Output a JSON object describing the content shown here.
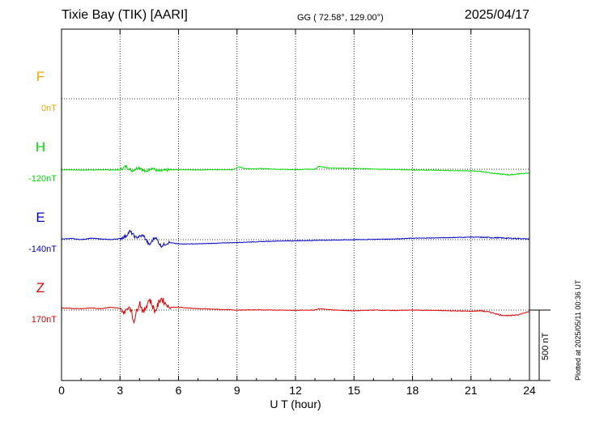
{
  "header": {
    "title": "Tixie Bay (TIK)  [AARI]",
    "coords": "GG ( 72.58°, 129.00°)",
    "date": "2025/04/17"
  },
  "footer": {
    "xlabel": "U T (hour)",
    "plotted": "Plotted at 2025/05/11 00:36 UT",
    "scale_label": "500 nT"
  },
  "colors": {
    "F": "#f0a800",
    "H": "#00dd00",
    "E": "#0000cc",
    "Z": "#e00000",
    "axis": "#000000",
    "grid": "#000000"
  },
  "chart_data": {
    "type": "line",
    "title": "Tixie Bay (TIK)  [AARI]",
    "xlabel": "U T (hour)",
    "ylabel": "",
    "x_ticks": [
      0,
      3,
      6,
      9,
      12,
      15,
      18,
      21,
      24
    ],
    "xlim": [
      0,
      24
    ],
    "grid": true,
    "scale_bar_nT": 500,
    "series": [
      {
        "name": "F",
        "baseline_label": "0nT",
        "values": []
      },
      {
        "name": "H",
        "baseline_label": "-120nT",
        "x": [
          0,
          0.5,
          1,
          1.5,
          2,
          2.5,
          3,
          3.3,
          3.6,
          4.0,
          4.3,
          4.6,
          5.0,
          5.5,
          6,
          7,
          8,
          8.8,
          9.1,
          9.4,
          9.8,
          10.5,
          11,
          12,
          12.5,
          13,
          13.2,
          13.6,
          14,
          15,
          16,
          17,
          18,
          19,
          20,
          21,
          21.5,
          22,
          22.5,
          23,
          23.5,
          24
        ],
        "values": [
          -5,
          -4,
          -6,
          -5,
          -4,
          -5,
          -5,
          20,
          -10,
          15,
          -20,
          10,
          -15,
          -5,
          -3,
          -5,
          -3,
          -4,
          18,
          5,
          3,
          4,
          0,
          -3,
          0,
          -2,
          22,
          10,
          8,
          5,
          2,
          -2,
          -5,
          -6,
          -10,
          -12,
          -15,
          -25,
          -35,
          -40,
          -32,
          -28
        ]
      },
      {
        "name": "E",
        "baseline_label": "-140nT",
        "x": [
          0,
          0.5,
          1,
          1.5,
          2,
          2.5,
          3,
          3.3,
          3.5,
          3.8,
          4.2,
          4.5,
          4.8,
          5.1,
          5.5,
          6,
          7,
          8,
          9,
          10,
          11,
          12,
          13,
          14,
          15,
          16,
          17,
          18,
          19,
          20,
          21,
          22,
          23,
          24
        ],
        "values": [
          5,
          8,
          0,
          10,
          5,
          0,
          8,
          25,
          60,
          15,
          30,
          -40,
          20,
          -45,
          -20,
          -30,
          -30,
          -25,
          -20,
          -15,
          -10,
          -8,
          -5,
          -3,
          0,
          2,
          5,
          10,
          12,
          15,
          18,
          15,
          10,
          5
        ]
      },
      {
        "name": "Z",
        "baseline_label": "170nT",
        "x": [
          0,
          0.5,
          1,
          1.5,
          2,
          2.5,
          3,
          3.2,
          3.5,
          3.7,
          4.0,
          4.2,
          4.5,
          4.8,
          5.1,
          5.5,
          6,
          7,
          8,
          9,
          10,
          11,
          12,
          13,
          13.2,
          14,
          15,
          16,
          17,
          18,
          19,
          20,
          21,
          21.5,
          22,
          22.5,
          23,
          23.5,
          24
        ],
        "values": [
          15,
          12,
          10,
          15,
          10,
          20,
          12,
          -20,
          30,
          -80,
          60,
          -20,
          80,
          -10,
          85,
          20,
          20,
          10,
          5,
          0,
          2,
          0,
          -2,
          0,
          10,
          0,
          -5,
          0,
          -3,
          0,
          -2,
          -5,
          -8,
          -5,
          -15,
          -35,
          -40,
          -30,
          -10
        ]
      }
    ]
  }
}
